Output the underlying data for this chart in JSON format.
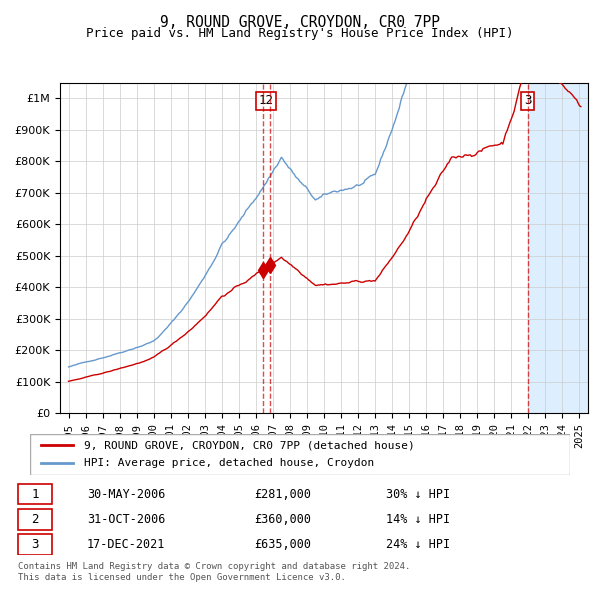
{
  "title": "9, ROUND GROVE, CROYDON, CR0 7PP",
  "subtitle": "Price paid vs. HM Land Registry's House Price Index (HPI)",
  "legend_line1": "9, ROUND GROVE, CROYDON, CR0 7PP (detached house)",
  "legend_line2": "HPI: Average price, detached house, Croydon",
  "footer1": "Contains HM Land Registry data © Crown copyright and database right 2024.",
  "footer2": "This data is licensed under the Open Government Licence v3.0.",
  "transactions": [
    {
      "label": "1",
      "date_label": "30-MAY-2006",
      "price_label": "£281,000",
      "hpi_label": "30% ↓ HPI",
      "date_x": 2006.41,
      "price": 281000
    },
    {
      "label": "2",
      "date_label": "31-OCT-2006",
      "price_label": "£360,000",
      "hpi_label": "14% ↓ HPI",
      "date_x": 2006.83,
      "price": 360000
    },
    {
      "label": "3",
      "date_label": "17-DEC-2021",
      "price_label": "£635,000",
      "hpi_label": "24% ↓ HPI",
      "date_x": 2021.96,
      "price": 635000
    }
  ],
  "vline_x_1": 2006.41,
  "vline_x_2": 2006.83,
  "vline_x_3": 2021.96,
  "hpi_color": "#6699cc",
  "price_color": "#cc0000",
  "vline_color": "#cc0000",
  "shade_color": "#ddeeff",
  "ylim": [
    0,
    1050000
  ],
  "xlim_start": 1994.5,
  "xlim_end": 2025.5,
  "shade_start": 2021.96,
  "shade_end": 2025.5
}
